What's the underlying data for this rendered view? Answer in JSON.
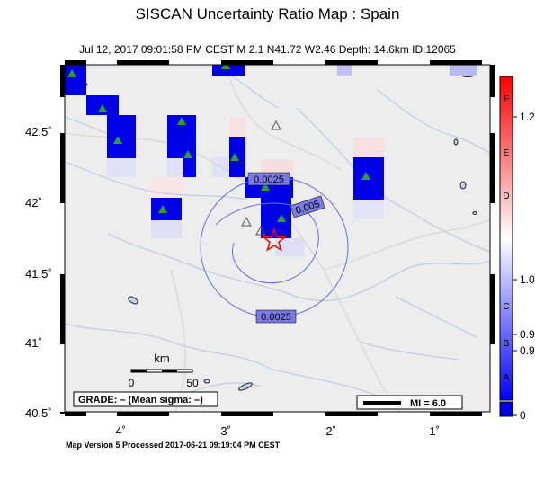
{
  "title": "SISCAN Uncertainty Ratio Map : Spain",
  "subtitle": "Jul 12, 2017 09:01:58 PM CEST   M 2.1   N41.72 W2.46   Depth: 14.6km   ID:12065",
  "footer": "Map Version 5 Processed 2017-06-21 09:19:04 PM CEST",
  "axes": {
    "lat_labels": [
      "42.5˚",
      "42˚",
      "41.5˚",
      "41˚",
      "40.5˚"
    ],
    "lon_labels": [
      "-4˚",
      "-3˚",
      "-2˚",
      "-1˚"
    ]
  },
  "contours": [
    "0.0025",
    "0.005",
    "0.0025"
  ],
  "scale_bar": {
    "title": "km",
    "zero": "0",
    "fifty": "50"
  },
  "grade_box": {
    "text": "GRADE: – (Mean sigma: –)"
  },
  "mi_legend": {
    "text": "MI = 6.0"
  },
  "colorbar": {
    "letters": [
      "F",
      "E",
      "D",
      "C",
      "B",
      "A"
    ],
    "ticks": [
      "1.2",
      "1.0",
      "0.9",
      "0.9",
      "0"
    ],
    "colors": {
      "low": "#0000ff",
      "mid": "#ffffff",
      "high": "#ff0000"
    }
  },
  "epicenter": {
    "lat": 41.72,
    "lon": -2.46,
    "color": "#ff0000"
  },
  "map_colors": {
    "land": "#ededed",
    "rivers": "#b8c4dc",
    "borders": "#cccccc",
    "contour": "#6b6bdc",
    "station": "#2ca02c"
  },
  "map_extent": {
    "lon_min": -4.5,
    "lon_max": -0.6,
    "lat_min": 40.5,
    "lat_max": 42.95
  }
}
